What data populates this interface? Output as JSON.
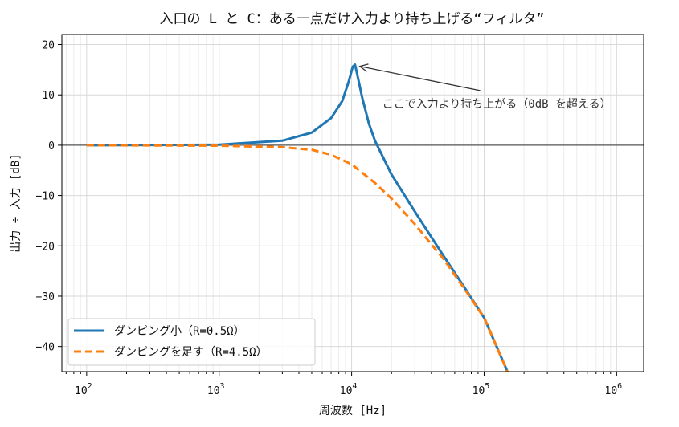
{
  "chart_data": {
    "type": "line",
    "title": "入口の L と C：ある一点だけ入力より持ち上げる“フィルタ”",
    "xlabel": "周波数 [Hz]",
    "ylabel": "出力 ÷ 入力 [dB]",
    "xscale": "log",
    "xlim": [
      65,
      1600000
    ],
    "ylim": [
      -45,
      22
    ],
    "grid": true,
    "legend_position": "lower-left",
    "x_ticks": [
      {
        "value": 100,
        "base": "10",
        "exp": "2"
      },
      {
        "value": 1000,
        "base": "10",
        "exp": "3"
      },
      {
        "value": 10000,
        "base": "10",
        "exp": "4"
      },
      {
        "value": 100000,
        "base": "10",
        "exp": "5"
      },
      {
        "value": 1000000,
        "base": "10",
        "exp": "6"
      }
    ],
    "y_ticks": [
      20,
      10,
      0,
      -10,
      -20,
      -30,
      -40
    ],
    "y_tick_labels": [
      "20",
      "10",
      "0",
      "−10",
      "−20",
      "−30",
      "−40"
    ],
    "reference_line_y": 0,
    "series": [
      {
        "name": "ダンピング小（R=0.5Ω）",
        "color": "#1f77b4",
        "style": "solid",
        "points": [
          [
            100,
            0
          ],
          [
            1000,
            0.1
          ],
          [
            3000,
            0.9
          ],
          [
            5000,
            2.5
          ],
          [
            7000,
            5.4
          ],
          [
            8500,
            8.8
          ],
          [
            9500,
            12.6
          ],
          [
            10200,
            15.6
          ],
          [
            10600,
            16.0
          ],
          [
            11000,
            14.2
          ],
          [
            12000,
            9.5
          ],
          [
            13500,
            4.3
          ],
          [
            15000,
            0.9
          ],
          [
            20000,
            -5.8
          ],
          [
            30000,
            -13.2
          ],
          [
            50000,
            -22.2
          ],
          [
            70000,
            -28.0
          ],
          [
            100000,
            -34.3
          ],
          [
            150000,
            -45
          ]
        ]
      },
      {
        "name": "ダンピングを足す（R=4.5Ω）",
        "color": "#ff7f0e",
        "style": "dashed",
        "points": [
          [
            100,
            0
          ],
          [
            1000,
            -0.1
          ],
          [
            3000,
            -0.4
          ],
          [
            5000,
            -0.9
          ],
          [
            7000,
            -1.9
          ],
          [
            10000,
            -3.8
          ],
          [
            15000,
            -7.5
          ],
          [
            20000,
            -10.6
          ],
          [
            30000,
            -15.7
          ],
          [
            50000,
            -22.8
          ],
          [
            70000,
            -28.3
          ],
          [
            100000,
            -34.3
          ],
          [
            150000,
            -45
          ]
        ]
      }
    ],
    "annotation": {
      "text": "ここで入力より持ち上がる（0dB を超える）",
      "point": [
        10600,
        16.0
      ],
      "text_position": [
        17000,
        7.5
      ]
    }
  }
}
